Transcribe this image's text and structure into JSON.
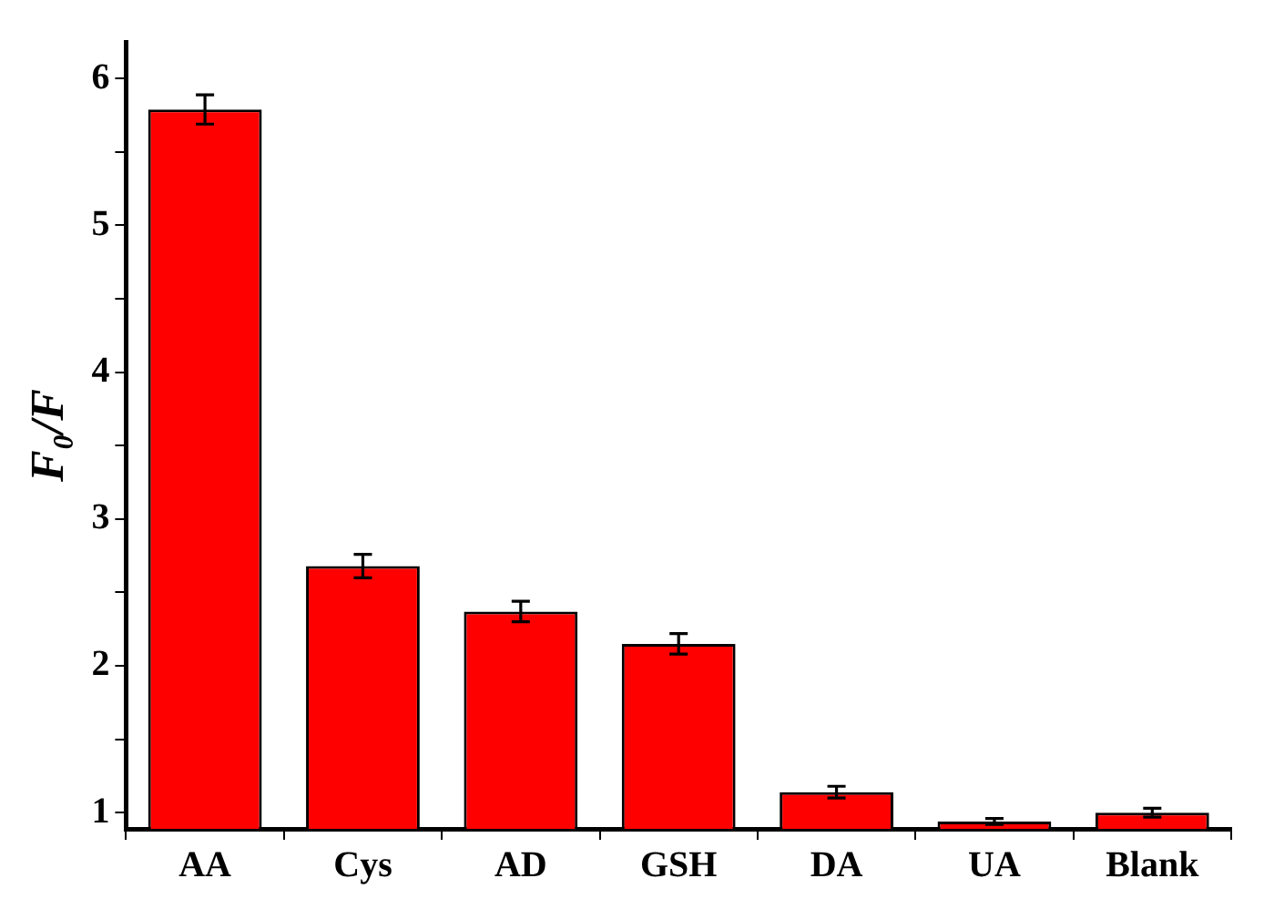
{
  "chart_data": {
    "type": "bar",
    "ylabel": "F₀/F",
    "categories": [
      "AA",
      "Cys",
      "AD",
      "GSH",
      "DA",
      "UA",
      "Blank"
    ],
    "values": [
      5.79,
      2.68,
      2.37,
      2.15,
      1.14,
      0.94,
      1.0
    ],
    "errors": [
      0.1,
      0.08,
      0.07,
      0.07,
      0.04,
      0.02,
      0.03
    ],
    "color": "#ff0000",
    "ylim": [
      0.89,
      6.25
    ],
    "yticks": [
      1,
      {
        "value": 1.5,
        "label": null
      },
      2,
      {
        "value": 2.5,
        "label": null
      },
      3,
      {
        "value": 3.5,
        "label": null
      },
      4,
      {
        "value": 4.5,
        "label": null
      },
      5,
      {
        "value": 5.5,
        "label": null
      },
      6
    ]
  }
}
